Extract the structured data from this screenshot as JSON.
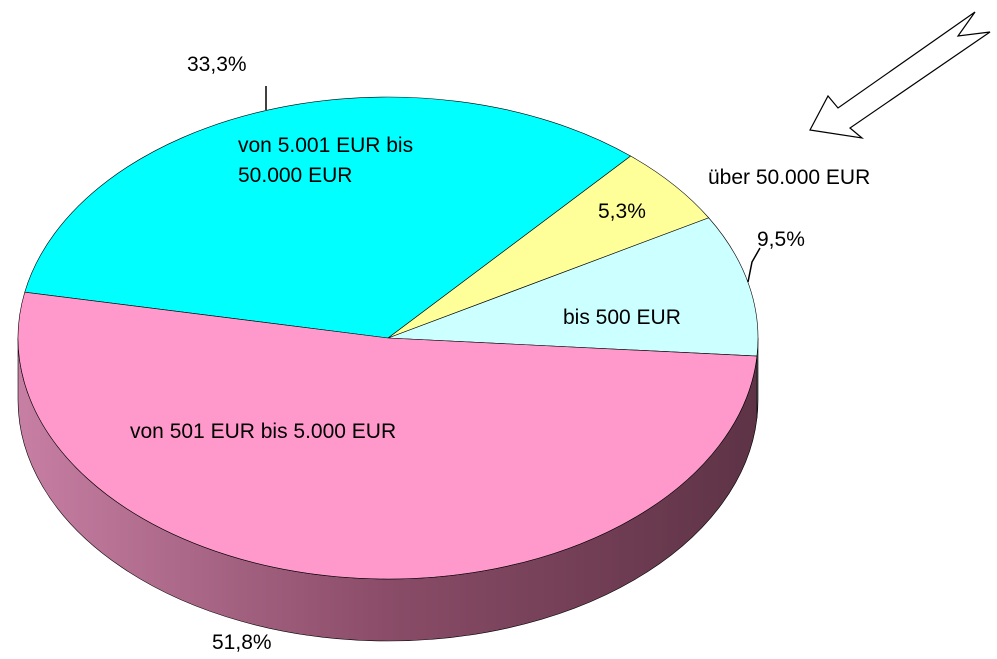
{
  "chart_data": {
    "type": "pie",
    "categories": [
      "bis 500 EUR",
      "über 50.000 EUR",
      "von 5.001 EUR bis 50.000 EUR",
      "von 501 EUR bis 5.000 EUR"
    ],
    "values": [
      9.5,
      5.3,
      33.3,
      51.8
    ],
    "value_labels": [
      "9,5%",
      "5,3%",
      "33,3%",
      "51,8%"
    ],
    "colors": [
      "#ccffff",
      "#ffff99",
      "#00ffff",
      "#ff99cc"
    ]
  }
}
